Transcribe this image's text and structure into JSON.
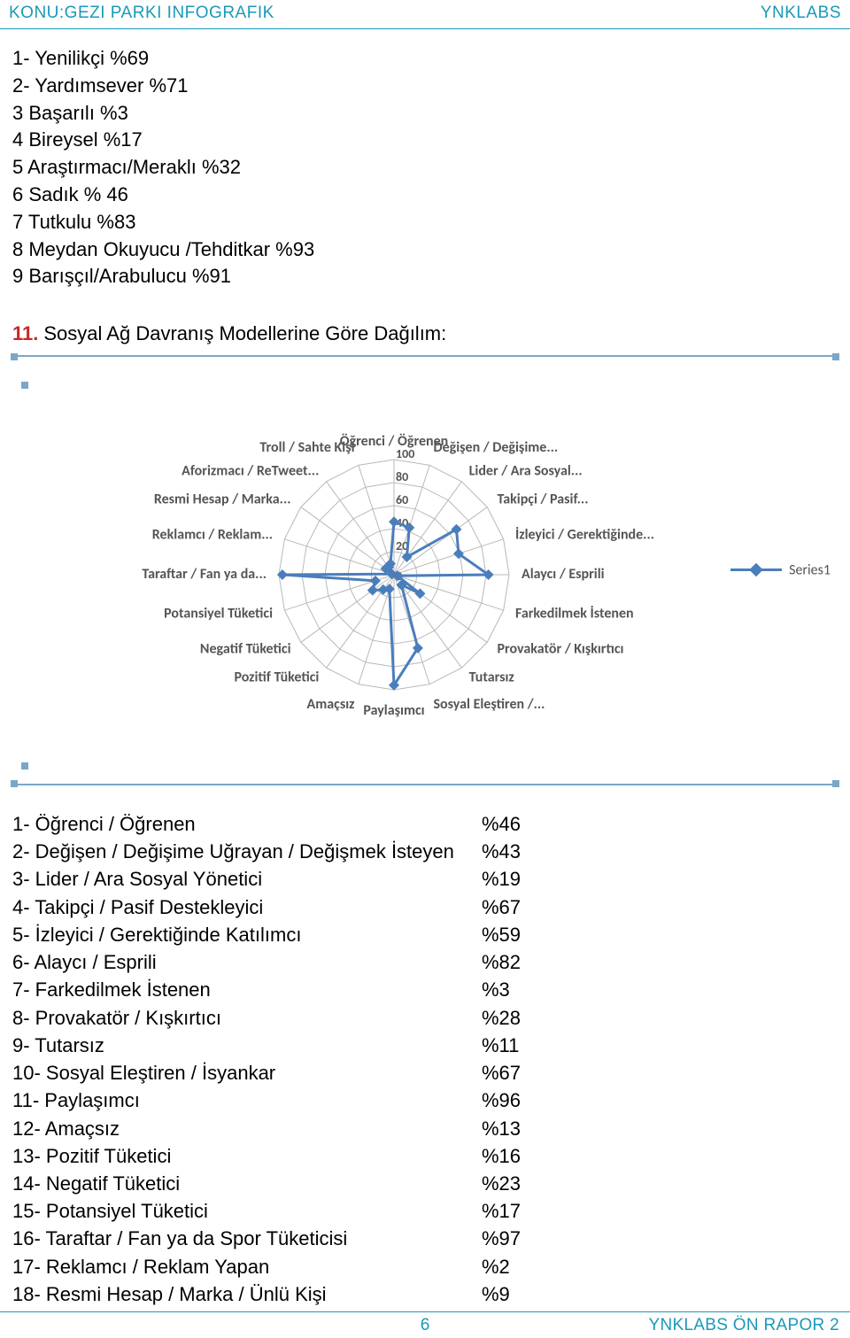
{
  "header": {
    "left": "KONU:GEZI PARKI INFOGRAFIK",
    "right": "YNKLABS"
  },
  "intro_list": [
    "1- Yenilikçi %69",
    "2- Yardımsever %71",
    "3 Başarılı %3",
    "4 Bireysel %17",
    "5 Araştırmacı/Meraklı %32",
    "6 Sadık % 46",
    "7 Tutkulu %83",
    "8 Meydan Okuyucu /Tehditkar %93",
    "9 Barışçıl/Arabulucu %91"
  ],
  "section": {
    "num": "11.",
    "title": "Sosyal Ağ Davranış Modellerine Göre Dağılım:"
  },
  "radar": {
    "type": "radar",
    "max": 100,
    "ticks": [
      20,
      40,
      60,
      80,
      100
    ],
    "background_color": "#ffffff",
    "grid_color": "#b9b9b9",
    "axis_line_color": "#b9b9b9",
    "series_color": "#4a7ebb",
    "series_line_width": 3,
    "marker_size": 6,
    "label_fontsize": 16,
    "tick_fontsize": 14,
    "legend": {
      "label": "Series1",
      "color": "#4a7ebb"
    },
    "categories": [
      {
        "label": "Öğrenci / Öğrenen",
        "value": 46
      },
      {
        "label": "Değişen / Değişime...",
        "value": 43
      },
      {
        "label": "Lider / Ara Sosyal...",
        "value": 19
      },
      {
        "label": "Takipçi / Pasif...",
        "value": 67
      },
      {
        "label": "İzleyici / Gerektiğinde...",
        "value": 59
      },
      {
        "label": "Alaycı / Esprili",
        "value": 82
      },
      {
        "label": "Farkedilmek İstenen",
        "value": 3
      },
      {
        "label": "Provakatör / Kışkırtıcı",
        "value": 28
      },
      {
        "label": "Tutarsız",
        "value": 11
      },
      {
        "label": "Sosyal Eleştiren /...",
        "value": 67
      },
      {
        "label": "Paylaşımcı",
        "value": 96
      },
      {
        "label": "Amaçsız",
        "value": 13
      },
      {
        "label": "Pozitif Tüketici",
        "value": 16
      },
      {
        "label": "Negatif Tüketici",
        "value": 23
      },
      {
        "label": "Potansiyel Tüketici",
        "value": 17
      },
      {
        "label": "Taraftar / Fan ya da...",
        "value": 97
      },
      {
        "label": "Reklamcı / Reklam...",
        "value": 2
      },
      {
        "label": "Resmi Hesap / Marka...",
        "value": 9
      },
      {
        "label": "Aforizmacı / ReTweet...",
        "value": 8
      },
      {
        "label": "Troll / Sahte Kişi",
        "value": 10
      }
    ]
  },
  "category_table": [
    {
      "label": "1- Öğrenci / Öğrenen",
      "value": "%46"
    },
    {
      "label": "2- Değişen / Değişime Uğrayan / Değişmek İsteyen",
      "value": "%43"
    },
    {
      "label": "3- Lider / Ara Sosyal Yönetici",
      "value": "%19"
    },
    {
      "label": "4- Takipçi / Pasif Destekleyici",
      "value": "%67"
    },
    {
      "label": "5- İzleyici / Gerektiğinde Katılımcı",
      "value": "%59"
    },
    {
      "label": "6- Alaycı / Esprili",
      "value": "%82"
    },
    {
      "label": "7- Farkedilmek İstenen",
      "value": "%3"
    },
    {
      "label": "8- Provakatör / Kışkırtıcı",
      "value": "%28"
    },
    {
      "label": "9- Tutarsız",
      "value": "%11"
    },
    {
      "label": "10- Sosyal Eleştiren / İsyankar",
      "value": "%67"
    },
    {
      "label": "11- Paylaşımcı",
      "value": "%96"
    },
    {
      "label": "12- Amaçsız",
      "value": "%13"
    },
    {
      "label": "13- Pozitif Tüketici",
      "value": "%16"
    },
    {
      "label": "14- Negatif Tüketici",
      "value": "%23"
    },
    {
      "label": "15- Potansiyel Tüketici",
      "value": "%17"
    },
    {
      "label": "16- Taraftar / Fan ya da Spor Tüketicisi",
      "value": "%97"
    },
    {
      "label": "17- Reklamcı / Reklam Yapan",
      "value": "%2"
    },
    {
      "label": "18- Resmi Hesap / Marka / Ünlü Kişi",
      "value": "%9"
    }
  ],
  "footer": {
    "page": "6",
    "right": "YNKLABS ÖN RAPOR 2"
  }
}
